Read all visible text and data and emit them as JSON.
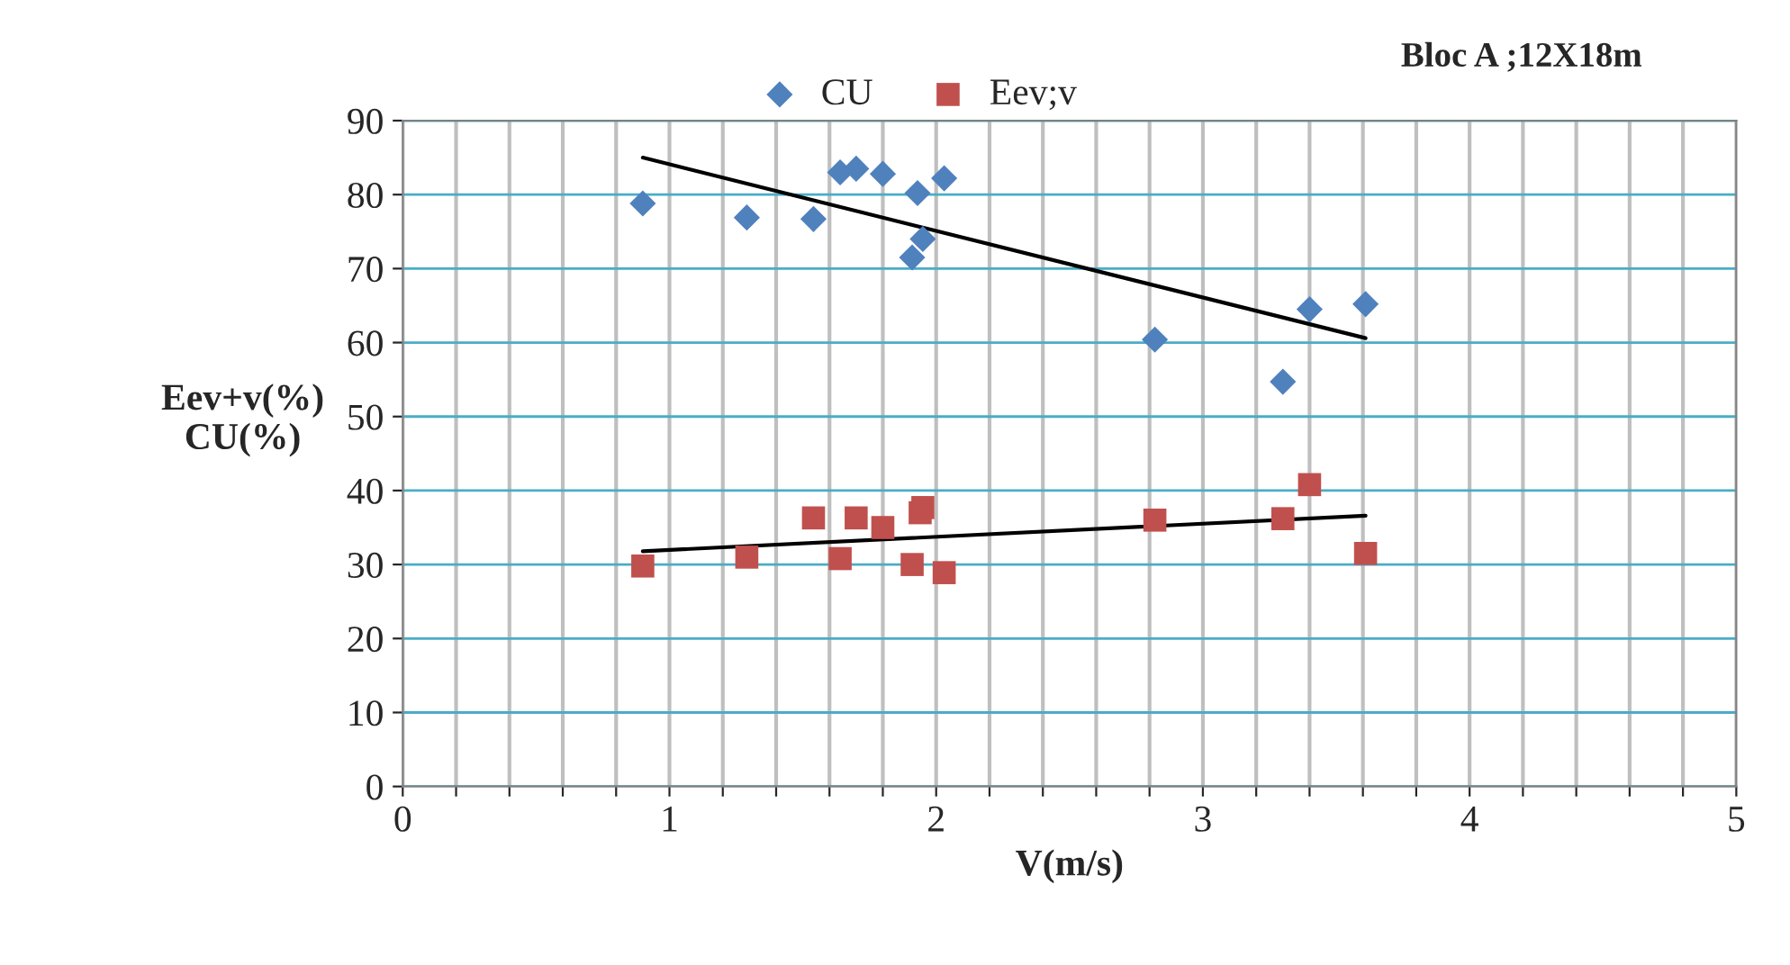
{
  "chart_data": {
    "type": "scatter",
    "title": "Bloc A ;12X18m",
    "xlabel": "V(m/s)",
    "ylabel": "Eev+v(%)\nCU(%)",
    "series": [
      {
        "name": "CU",
        "color": "#4f81bd",
        "marker": "diamond",
        "x": [
          0.9,
          1.29,
          1.54,
          1.64,
          1.7,
          1.8,
          1.91,
          1.93,
          1.95,
          2.03,
          2.82,
          3.3,
          3.4,
          3.61
        ],
        "values": [
          78.8,
          76.9,
          76.7,
          83,
          83.5,
          82.8,
          71.5,
          80.2,
          74,
          82.2,
          60.4,
          54.7,
          64.5,
          65.2
        ]
      },
      {
        "name": "Eev;v",
        "color": "#c0504d",
        "marker": "square",
        "x": [
          0.9,
          1.29,
          1.54,
          1.64,
          1.7,
          1.8,
          1.91,
          1.94,
          1.95,
          2.03,
          2.82,
          3.3,
          3.4,
          3.61
        ],
        "values": [
          29.8,
          31,
          36.3,
          30.8,
          36.3,
          35,
          30,
          37,
          37.7,
          28.9,
          36,
          36.2,
          40.8,
          31.5
        ]
      },
      {
        "type": "line",
        "color": "#000000",
        "marker": "none",
        "x": [
          0.9,
          3.61
        ],
        "values": [
          85,
          60.6
        ]
      },
      {
        "type": "line",
        "color": "#000000",
        "marker": "none",
        "x": [
          0.9,
          3.61
        ],
        "values": [
          31.8,
          36.6
        ]
      }
    ],
    "xlim": [
      0,
      5
    ],
    "xticks": [
      0,
      {
        "value": 0.2,
        "label": null
      },
      {
        "value": 0.4,
        "label": null
      },
      {
        "value": 0.6,
        "label": null
      },
      {
        "value": 0.8,
        "label": null
      },
      1,
      {
        "value": 1.2,
        "label": null
      },
      {
        "value": 1.4,
        "label": null
      },
      {
        "value": 1.6,
        "label": null
      },
      {
        "value": 1.8,
        "label": null
      },
      2,
      {
        "value": 2.2,
        "label": null
      },
      {
        "value": 2.4,
        "label": null
      },
      {
        "value": 2.6,
        "label": null
      },
      {
        "value": 2.8,
        "label": null
      },
      3,
      {
        "value": 3.2,
        "label": null
      },
      {
        "value": 3.4,
        "label": null
      },
      {
        "value": 3.6,
        "label": null
      },
      {
        "value": 3.8,
        "label": null
      },
      4,
      {
        "value": 4.2,
        "label": null
      },
      {
        "value": 4.4,
        "label": null
      },
      {
        "value": 4.6,
        "label": null
      },
      {
        "value": 4.8,
        "label": null
      },
      5
    ],
    "ylim": [
      0,
      90
    ],
    "yticks": [
      0,
      10,
      20,
      30,
      40,
      50,
      60,
      70,
      80,
      90
    ],
    "grid": true,
    "legend": "top"
  }
}
